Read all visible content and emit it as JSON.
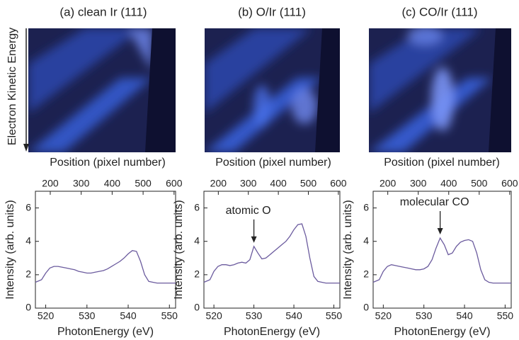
{
  "images": [
    {
      "title": "(a) clean Ir (111)",
      "xlabel": "Position (pixel number)"
    },
    {
      "title": "(b) O/Ir (111)",
      "xlabel": "Position (pixel number)"
    },
    {
      "title": "(c) CO/Ir (111)",
      "xlabel": "Position (pixel number)"
    }
  ],
  "image_ylabel": "Electron Kinetic Energy",
  "chart_data": [
    {
      "type": "line",
      "xlabel": "PhotonEnergy (eV)",
      "ylabel": "Intensity (arb. units)",
      "x": [
        517.5,
        519,
        520,
        521,
        522,
        523,
        524,
        525,
        526,
        527,
        528,
        529,
        530,
        531,
        532,
        533,
        534,
        535,
        536,
        537,
        538,
        539,
        540,
        541,
        542,
        543,
        544,
        545,
        546,
        547,
        548,
        549,
        550,
        551.5
      ],
      "series": [
        {
          "color": "#6b5b9e",
          "values": [
            1.55,
            1.7,
            2.1,
            2.4,
            2.5,
            2.5,
            2.45,
            2.4,
            2.35,
            2.3,
            2.2,
            2.15,
            2.1,
            2.1,
            2.15,
            2.2,
            2.25,
            2.35,
            2.5,
            2.65,
            2.8,
            3.0,
            3.25,
            3.45,
            3.4,
            2.8,
            2.0,
            1.6,
            1.55,
            1.5,
            1.5,
            1.5,
            1.5,
            1.5
          ]
        }
      ],
      "xlim": [
        517.5,
        551.5
      ],
      "xticks": [
        520,
        530,
        540,
        550
      ],
      "x2lim": [
        152,
        605
      ],
      "x2ticks": [
        200,
        300,
        400,
        500,
        600
      ],
      "ylim": [
        0,
        7
      ],
      "yticks": [
        0,
        2,
        4,
        6
      ]
    },
    {
      "type": "line",
      "xlabel": "PhotonEnergy (eV)",
      "ylabel": "Intensity (arb. units)",
      "x": [
        517.5,
        519,
        520,
        521,
        522,
        523,
        524,
        525,
        526,
        527,
        528,
        529,
        530,
        531,
        532,
        533,
        534,
        535,
        536,
        537,
        538,
        539,
        540,
        541,
        542,
        543,
        544,
        545,
        546,
        547,
        548,
        549,
        550,
        551.5
      ],
      "series": [
        {
          "color": "#6b5b9e",
          "values": [
            1.55,
            1.7,
            2.2,
            2.5,
            2.6,
            2.6,
            2.55,
            2.6,
            2.7,
            2.75,
            2.7,
            2.9,
            3.7,
            3.3,
            2.95,
            3.0,
            3.2,
            3.4,
            3.6,
            3.8,
            4.0,
            4.3,
            4.7,
            5.0,
            5.05,
            4.3,
            3.0,
            1.9,
            1.6,
            1.55,
            1.5,
            1.5,
            1.5,
            1.5
          ]
        }
      ],
      "xlim": [
        517.5,
        551.5
      ],
      "xticks": [
        520,
        530,
        540,
        550
      ],
      "x2lim": [
        152,
        605
      ],
      "x2ticks": [
        200,
        300,
        400,
        500,
        600
      ],
      "ylim": [
        0,
        7
      ],
      "yticks": [
        0,
        2,
        4,
        6
      ],
      "annotation": {
        "text": "atomic O",
        "x": 530,
        "y": 3.7
      }
    },
    {
      "type": "line",
      "xlabel": "PhotonEnergy (eV)",
      "ylabel": "Intensity (arb. units)",
      "x": [
        517.5,
        519,
        520,
        521,
        522,
        523,
        524,
        525,
        526,
        527,
        528,
        529,
        530,
        531,
        532,
        533,
        534,
        535,
        536,
        537,
        538,
        539,
        540,
        541,
        542,
        543,
        544,
        545,
        546,
        547,
        548,
        549,
        550,
        551.5
      ],
      "series": [
        {
          "color": "#6b5b9e",
          "values": [
            1.55,
            1.7,
            2.2,
            2.5,
            2.6,
            2.55,
            2.5,
            2.45,
            2.4,
            2.35,
            2.3,
            2.3,
            2.35,
            2.5,
            2.9,
            3.6,
            4.2,
            3.8,
            3.2,
            3.3,
            3.7,
            3.95,
            4.05,
            4.1,
            4.0,
            3.3,
            2.3,
            1.7,
            1.55,
            1.5,
            1.5,
            1.5,
            1.5,
            1.5
          ]
        }
      ],
      "xlim": [
        517.5,
        551.5
      ],
      "xticks": [
        520,
        530,
        540,
        550
      ],
      "x2lim": [
        152,
        605
      ],
      "x2ticks": [
        200,
        300,
        400,
        500,
        600
      ],
      "ylim": [
        0,
        7
      ],
      "yticks": [
        0,
        2,
        4,
        6
      ],
      "annotation": {
        "text": "molecular CO",
        "x": 534,
        "y": 4.2
      }
    }
  ]
}
